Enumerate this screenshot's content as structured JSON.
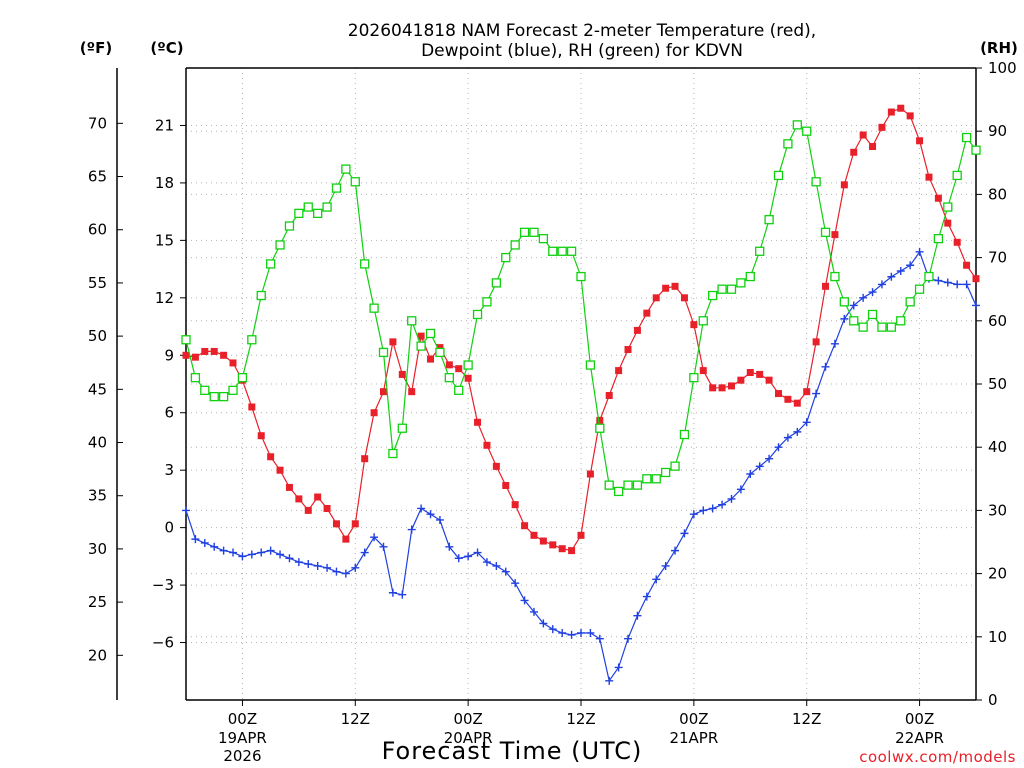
{
  "title_line1": "2026041818 NAM Forecast 2-meter Temperature (red),",
  "title_line2": "Dewpoint (blue), RH (green) for KDVN",
  "unit_f": "(ºF)",
  "unit_c": "(ºC)",
  "unit_rh": "(RH)",
  "xlabel": "Forecast Time (UTC)",
  "credit": "coolwx.com/models",
  "colors": {
    "temperature": "#e8202a",
    "dewpoint": "#2040e0",
    "rh": "#10d010",
    "grid": "#b4b4b4"
  },
  "chart_data": {
    "type": "line",
    "x_unit": "forecast hour from 2026-04-18 18Z",
    "x_range": [
      0,
      84
    ],
    "x_ticks": [
      {
        "x": 6,
        "label": "00Z",
        "sub": [
          "19APR",
          "2026"
        ]
      },
      {
        "x": 18,
        "label": "12Z",
        "sub": []
      },
      {
        "x": 30,
        "label": "00Z",
        "sub": [
          "20APR"
        ]
      },
      {
        "x": 42,
        "label": "12Z",
        "sub": []
      },
      {
        "x": 54,
        "label": "00Z",
        "sub": [
          "21APR"
        ]
      },
      {
        "x": 66,
        "label": "12Z",
        "sub": []
      },
      {
        "x": 78,
        "label": "00Z",
        "sub": [
          "22APR"
        ]
      }
    ],
    "y_celsius": {
      "range": [
        -9,
        24
      ],
      "ticks": [
        "21",
        "18",
        "15",
        "12",
        "9",
        "6",
        "3",
        "0",
        "−3",
        "−6"
      ],
      "tick_values": [
        21,
        18,
        15,
        12,
        9,
        6,
        3,
        0,
        -3,
        -6
      ]
    },
    "y_fahrenheit": {
      "ticks": [
        "70",
        "65",
        "60",
        "55",
        "50",
        "45",
        "40",
        "35",
        "30",
        "25",
        "20"
      ],
      "tick_values": [
        70,
        65,
        60,
        55,
        50,
        45,
        40,
        35,
        30,
        25,
        20
      ]
    },
    "y_rh": {
      "range": [
        0,
        100
      ],
      "ticks": [
        "100",
        "90",
        "80",
        "70",
        "60",
        "50",
        "40",
        "30",
        "20",
        "10",
        "0"
      ],
      "tick_values": [
        100,
        90,
        80,
        70,
        60,
        50,
        40,
        30,
        20,
        10,
        0
      ]
    },
    "grid": true,
    "series": [
      {
        "name": "Temperature",
        "axis": "celsius",
        "marker": "filled-square",
        "points": [
          [
            0,
            9.0
          ],
          [
            1,
            8.9
          ],
          [
            2,
            9.2
          ],
          [
            3,
            9.2
          ],
          [
            4,
            9.0
          ],
          [
            5,
            8.6
          ],
          [
            6,
            7.7
          ],
          [
            7,
            6.3
          ],
          [
            8,
            4.8
          ],
          [
            9,
            3.7
          ],
          [
            10,
            3.0
          ],
          [
            11,
            2.1
          ],
          [
            12,
            1.5
          ],
          [
            13,
            0.9
          ],
          [
            14,
            1.6
          ],
          [
            15,
            1.0
          ],
          [
            16,
            0.2
          ],
          [
            17,
            -0.6
          ],
          [
            18,
            0.2
          ],
          [
            19,
            3.6
          ],
          [
            20,
            6.0
          ],
          [
            21,
            7.1
          ],
          [
            22,
            9.7
          ],
          [
            23,
            8.0
          ],
          [
            24,
            7.1
          ],
          [
            25,
            10.0
          ],
          [
            26,
            8.8
          ],
          [
            27,
            9.4
          ],
          [
            28,
            8.5
          ],
          [
            29,
            8.3
          ],
          [
            30,
            7.8
          ],
          [
            31,
            5.5
          ],
          [
            32,
            4.3
          ],
          [
            33,
            3.2
          ],
          [
            34,
            2.2
          ],
          [
            35,
            1.2
          ],
          [
            36,
            0.1
          ],
          [
            37,
            -0.4
          ],
          [
            38,
            -0.7
          ],
          [
            39,
            -0.9
          ],
          [
            40,
            -1.1
          ],
          [
            41,
            -1.2
          ],
          [
            42,
            -0.4
          ],
          [
            43,
            2.8
          ],
          [
            44,
            5.6
          ],
          [
            45,
            6.9
          ],
          [
            46,
            8.2
          ],
          [
            47,
            9.3
          ],
          [
            48,
            10.3
          ],
          [
            49,
            11.2
          ],
          [
            50,
            12.0
          ],
          [
            51,
            12.5
          ],
          [
            52,
            12.6
          ],
          [
            53,
            12.0
          ],
          [
            54,
            10.6
          ],
          [
            55,
            8.2
          ],
          [
            56,
            7.3
          ],
          [
            57,
            7.3
          ],
          [
            58,
            7.4
          ],
          [
            59,
            7.7
          ],
          [
            60,
            8.1
          ],
          [
            61,
            8.0
          ],
          [
            62,
            7.7
          ],
          [
            63,
            7.0
          ],
          [
            64,
            6.7
          ],
          [
            65,
            6.5
          ],
          [
            66,
            7.1
          ],
          [
            67,
            9.7
          ],
          [
            68,
            12.6
          ],
          [
            69,
            15.3
          ],
          [
            70,
            17.9
          ],
          [
            71,
            19.6
          ],
          [
            72,
            20.5
          ],
          [
            73,
            19.9
          ],
          [
            74,
            20.9
          ],
          [
            75,
            21.7
          ],
          [
            76,
            21.9
          ],
          [
            77,
            21.5
          ],
          [
            78,
            20.2
          ],
          [
            79,
            18.3
          ],
          [
            80,
            17.2
          ],
          [
            81,
            15.9
          ],
          [
            82,
            14.9
          ],
          [
            83,
            13.7
          ],
          [
            84,
            13.0
          ]
        ]
      },
      {
        "name": "Dewpoint",
        "axis": "celsius",
        "marker": "plus",
        "points": [
          [
            0,
            0.9
          ],
          [
            1,
            -0.6
          ],
          [
            2,
            -0.8
          ],
          [
            3,
            -1.0
          ],
          [
            4,
            -1.2
          ],
          [
            5,
            -1.3
          ],
          [
            6,
            -1.5
          ],
          [
            7,
            -1.4
          ],
          [
            8,
            -1.3
          ],
          [
            9,
            -1.2
          ],
          [
            10,
            -1.4
          ],
          [
            11,
            -1.6
          ],
          [
            12,
            -1.8
          ],
          [
            13,
            -1.9
          ],
          [
            14,
            -2.0
          ],
          [
            15,
            -2.1
          ],
          [
            16,
            -2.3
          ],
          [
            17,
            -2.4
          ],
          [
            18,
            -2.1
          ],
          [
            19,
            -1.3
          ],
          [
            20,
            -0.5
          ],
          [
            21,
            -1.0
          ],
          [
            22,
            -3.4
          ],
          [
            23,
            -3.5
          ],
          [
            24,
            -0.1
          ],
          [
            25,
            1.0
          ],
          [
            26,
            0.7
          ],
          [
            27,
            0.4
          ],
          [
            28,
            -1.0
          ],
          [
            29,
            -1.6
          ],
          [
            30,
            -1.5
          ],
          [
            31,
            -1.3
          ],
          [
            32,
            -1.8
          ],
          [
            33,
            -2.0
          ],
          [
            34,
            -2.3
          ],
          [
            35,
            -2.9
          ],
          [
            36,
            -3.8
          ],
          [
            37,
            -4.4
          ],
          [
            38,
            -5.0
          ],
          [
            39,
            -5.3
          ],
          [
            40,
            -5.5
          ],
          [
            41,
            -5.6
          ],
          [
            42,
            -5.5
          ],
          [
            43,
            -5.5
          ],
          [
            44,
            -5.8
          ],
          [
            45,
            -8.0
          ],
          [
            46,
            -7.3
          ],
          [
            47,
            -5.8
          ],
          [
            48,
            -4.6
          ],
          [
            49,
            -3.6
          ],
          [
            50,
            -2.7
          ],
          [
            51,
            -2.0
          ],
          [
            52,
            -1.2
          ],
          [
            53,
            -0.3
          ],
          [
            54,
            0.7
          ],
          [
            55,
            0.9
          ],
          [
            56,
            1.0
          ],
          [
            57,
            1.2
          ],
          [
            58,
            1.5
          ],
          [
            59,
            2.0
          ],
          [
            60,
            2.8
          ],
          [
            61,
            3.2
          ],
          [
            62,
            3.6
          ],
          [
            63,
            4.2
          ],
          [
            64,
            4.7
          ],
          [
            65,
            5.0
          ],
          [
            66,
            5.5
          ],
          [
            67,
            7.0
          ],
          [
            68,
            8.4
          ],
          [
            69,
            9.6
          ],
          [
            70,
            10.9
          ],
          [
            71,
            11.6
          ],
          [
            72,
            12.0
          ],
          [
            73,
            12.3
          ],
          [
            74,
            12.7
          ],
          [
            75,
            13.1
          ],
          [
            76,
            13.4
          ],
          [
            77,
            13.7
          ],
          [
            78,
            14.4
          ],
          [
            79,
            13.0
          ],
          [
            80,
            12.9
          ],
          [
            81,
            12.8
          ],
          [
            82,
            12.7
          ],
          [
            83,
            12.7
          ],
          [
            84,
            11.6
          ]
        ]
      },
      {
        "name": "RH",
        "axis": "rh",
        "marker": "open-square",
        "points": [
          [
            0,
            57
          ],
          [
            1,
            51
          ],
          [
            2,
            49
          ],
          [
            3,
            48
          ],
          [
            4,
            48
          ],
          [
            5,
            49
          ],
          [
            6,
            51
          ],
          [
            7,
            57
          ],
          [
            8,
            64
          ],
          [
            9,
            69
          ],
          [
            10,
            72
          ],
          [
            11,
            75
          ],
          [
            12,
            77
          ],
          [
            13,
            78
          ],
          [
            14,
            77
          ],
          [
            15,
            78
          ],
          [
            16,
            81
          ],
          [
            17,
            84
          ],
          [
            18,
            82
          ],
          [
            19,
            69
          ],
          [
            20,
            62
          ],
          [
            21,
            55
          ],
          [
            22,
            39
          ],
          [
            23,
            43
          ],
          [
            24,
            60
          ],
          [
            25,
            56
          ],
          [
            26,
            58
          ],
          [
            27,
            55
          ],
          [
            28,
            51
          ],
          [
            29,
            49
          ],
          [
            30,
            53
          ],
          [
            31,
            61
          ],
          [
            32,
            63
          ],
          [
            33,
            66
          ],
          [
            34,
            70
          ],
          [
            35,
            72
          ],
          [
            36,
            74
          ],
          [
            37,
            74
          ],
          [
            38,
            73
          ],
          [
            39,
            71
          ],
          [
            40,
            71
          ],
          [
            41,
            71
          ],
          [
            42,
            67
          ],
          [
            43,
            53
          ],
          [
            44,
            43
          ],
          [
            45,
            34
          ],
          [
            46,
            33
          ],
          [
            47,
            34
          ],
          [
            48,
            34
          ],
          [
            49,
            35
          ],
          [
            50,
            35
          ],
          [
            51,
            36
          ],
          [
            52,
            37
          ],
          [
            53,
            42
          ],
          [
            54,
            51
          ],
          [
            55,
            60
          ],
          [
            56,
            64
          ],
          [
            57,
            65
          ],
          [
            58,
            65
          ],
          [
            59,
            66
          ],
          [
            60,
            67
          ],
          [
            61,
            71
          ],
          [
            62,
            76
          ],
          [
            63,
            83
          ],
          [
            64,
            88
          ],
          [
            65,
            91
          ],
          [
            66,
            90
          ],
          [
            67,
            82
          ],
          [
            68,
            74
          ],
          [
            69,
            67
          ],
          [
            70,
            63
          ],
          [
            71,
            60
          ],
          [
            72,
            59
          ],
          [
            73,
            61
          ],
          [
            74,
            59
          ],
          [
            75,
            59
          ],
          [
            76,
            60
          ],
          [
            77,
            63
          ],
          [
            78,
            65
          ],
          [
            79,
            67
          ],
          [
            80,
            73
          ],
          [
            81,
            78
          ],
          [
            82,
            83
          ],
          [
            83,
            89
          ],
          [
            84,
            87
          ]
        ]
      }
    ]
  }
}
